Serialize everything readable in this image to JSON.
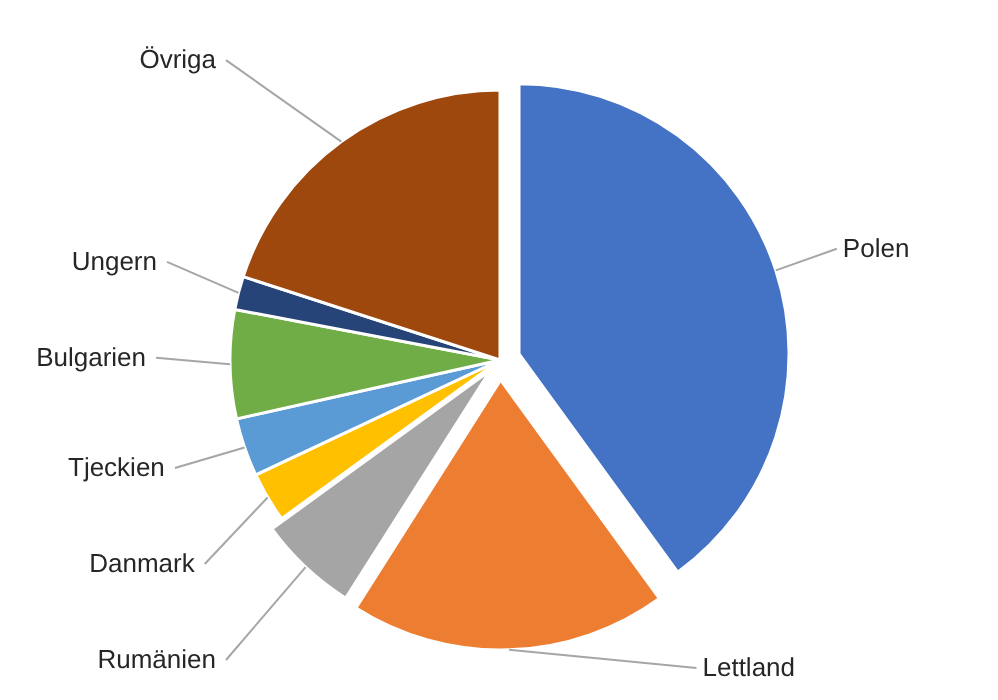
{
  "chart_data": {
    "type": "pie",
    "categories": [
      "Polen",
      "Lettland",
      "Rumänien",
      "Danmark",
      "Tjeckien",
      "Bulgarien",
      "Ungern",
      "Övriga"
    ],
    "values": [
      40,
      19,
      6,
      3,
      3.5,
      6.5,
      2,
      20
    ],
    "colors": [
      "#4472c4",
      "#ed7d31",
      "#a5a5a5",
      "#ffc000",
      "#5b9bd5",
      "#70ad47",
      "#264478",
      "#9e480e"
    ]
  }
}
